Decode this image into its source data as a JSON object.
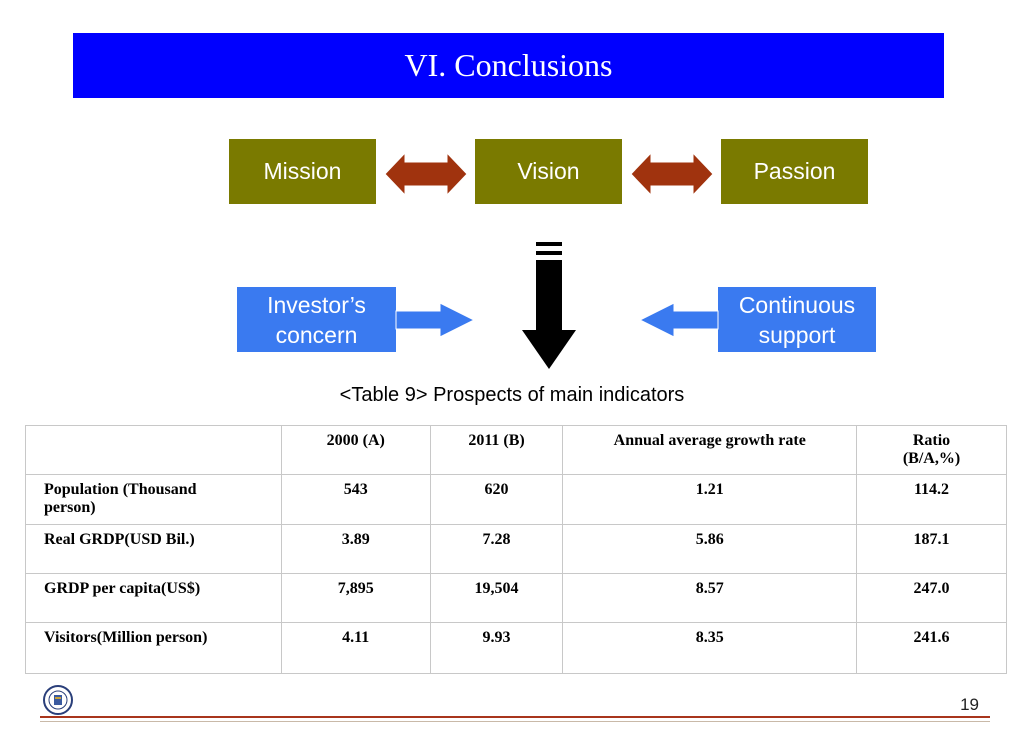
{
  "slide": {
    "title": "VI. Conclusions",
    "page_number": "19"
  },
  "diagram": {
    "mission": "Mission",
    "vision": "Vision",
    "passion": "Passion",
    "investor_line1": "Investor’s",
    "investor_line2": "concern",
    "support_line1": "Continuous",
    "support_line2": "support"
  },
  "table": {
    "caption": "<Table 9> Prospects of main indicators",
    "headers": [
      "",
      "2000 (A)",
      "2011 (B)",
      "Annual average growth rate",
      "Ratio (B/A,%)"
    ],
    "rows": [
      [
        "Population (Thousand person)",
        "543",
        "620",
        "1.21",
        "114.2"
      ],
      [
        "Real GRDP(USD Bil.)",
        "3.89",
        "7.28",
        "5.86",
        "187.1"
      ],
      [
        "GRDP per capita(US$)",
        "7,895",
        "19,504",
        "8.57",
        "247.0"
      ],
      [
        "Visitors(Million person)",
        "4.11",
        "9.93",
        "8.35",
        "241.6"
      ]
    ]
  },
  "colors": {
    "title_bar": "#0000ff",
    "olive_box": "#7a7a00",
    "blue_box": "#3a7af0",
    "double_arrow": "#a0330e",
    "footer_line": "#a8351c"
  }
}
